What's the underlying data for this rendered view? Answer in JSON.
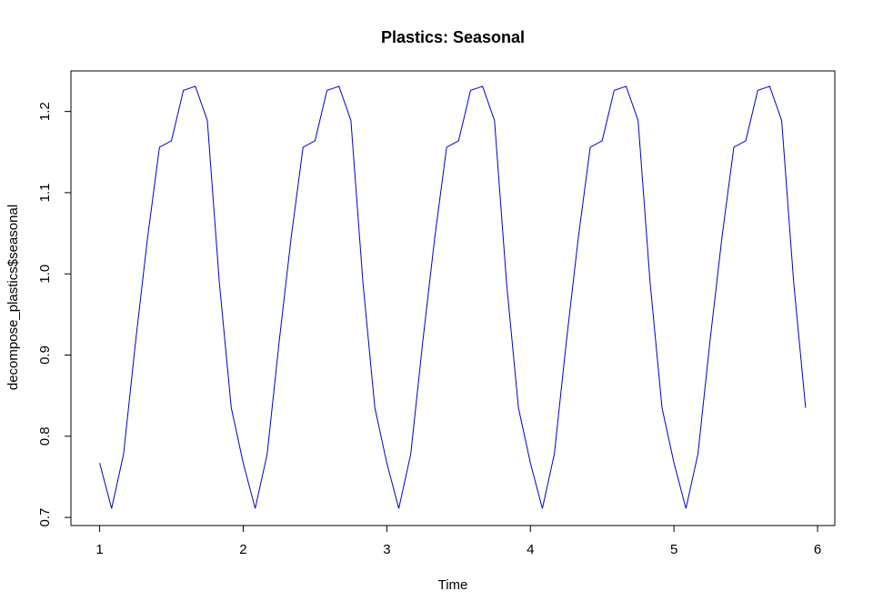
{
  "chart_data": {
    "type": "line",
    "title": "Plastics: Seasonal",
    "xlabel": "Time",
    "ylabel": "decompose_plastics$seasonal",
    "xlim": [
      0.8,
      6.12
    ],
    "ylim": [
      0.69,
      1.25
    ],
    "xticks": [
      "1",
      "2",
      "3",
      "4",
      "5",
      "6"
    ],
    "yticks": [
      "0.7",
      "0.8",
      "0.9",
      "1.0",
      "1.1",
      "1.2"
    ],
    "grid": false,
    "line_color": "#0000CD",
    "frequency": 12,
    "start": 1,
    "periods": 5,
    "seasonal_pattern": [
      0.767,
      0.711,
      0.778,
      0.916,
      1.044,
      1.156,
      1.164,
      1.226,
      1.231,
      1.189,
      0.99,
      0.835
    ]
  }
}
